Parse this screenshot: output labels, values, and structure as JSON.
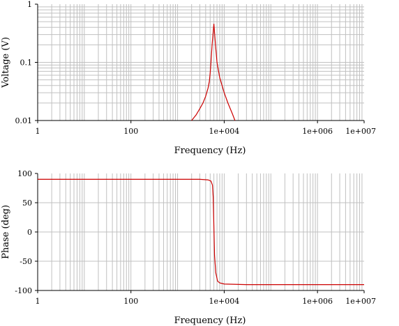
{
  "chart_data": [
    {
      "type": "line",
      "xscale": "log",
      "yscale": "log",
      "xlim": [
        1,
        10000000
      ],
      "ylim": [
        0.01,
        1
      ],
      "xlabel": "Frequency (Hz)",
      "ylabel": "Voltage (V)",
      "x_tick_labels": [
        "1",
        "100",
        "1e+004",
        "1e+006",
        "1e+007"
      ],
      "y_tick_labels": [
        "1",
        "0.1",
        "0.01"
      ],
      "grid": true,
      "series": [
        {
          "color": "#cc0000",
          "x": [
            2000,
            2500,
            3000,
            3500,
            4000,
            4500,
            4800,
            5000,
            5200,
            5500,
            6000,
            6500,
            7000,
            8000,
            10000,
            12000,
            15000,
            17000
          ],
          "y": [
            0.01,
            0.0125,
            0.016,
            0.02,
            0.026,
            0.036,
            0.047,
            0.065,
            0.1,
            0.2,
            0.46,
            0.2,
            0.1,
            0.055,
            0.03,
            0.02,
            0.013,
            0.01
          ]
        }
      ]
    },
    {
      "type": "line",
      "xscale": "log",
      "xlim": [
        1,
        10000000
      ],
      "ylim": [
        -100,
        100
      ],
      "xlabel": "Frequency (Hz)",
      "ylabel": "Phase (deg)",
      "x_tick_labels": [
        "1",
        "100",
        "1e+004",
        "1e+006",
        "1e+007"
      ],
      "y_tick_labels": [
        "100",
        "50",
        "0",
        "-50",
        "-100"
      ],
      "grid": true,
      "series": [
        {
          "color": "#cc0000",
          "x": [
            1,
            100,
            1000,
            3000,
            4500,
            5200,
            5600,
            5800,
            6000,
            6200,
            6600,
            7200,
            8000,
            10000,
            30000,
            10000000
          ],
          "y": [
            90,
            90,
            90,
            90,
            89,
            87,
            80,
            60,
            10,
            -40,
            -70,
            -84,
            -87,
            -89,
            -90,
            -90
          ]
        }
      ]
    }
  ]
}
